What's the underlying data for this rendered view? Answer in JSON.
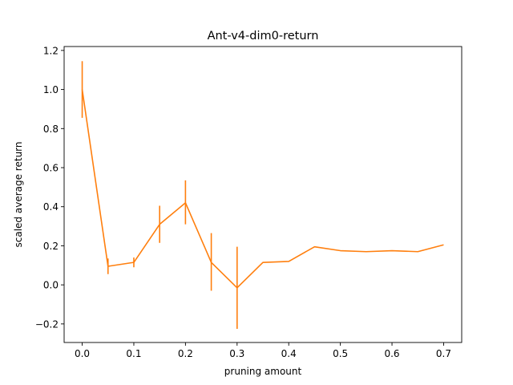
{
  "chart_data": {
    "type": "line",
    "title": "Ant-v4-dim0-return",
    "xlabel": "pruning amount",
    "ylabel": "scaled average return",
    "xlim": [
      -0.035,
      0.735
    ],
    "ylim": [
      -0.295,
      1.22
    ],
    "x_ticks": [
      0.0,
      0.1,
      0.2,
      0.3,
      0.4,
      0.5,
      0.6,
      0.7
    ],
    "x_tick_labels": [
      "0.0",
      "0.1",
      "0.2",
      "0.3",
      "0.4",
      "0.5",
      "0.6",
      "0.7"
    ],
    "y_ticks": [
      -0.2,
      0.0,
      0.2,
      0.4,
      0.6,
      0.8,
      1.0,
      1.2
    ],
    "y_tick_labels": [
      "−0.2",
      "0.0",
      "0.2",
      "0.4",
      "0.6",
      "0.8",
      "1.0",
      "1.2"
    ],
    "grid": false,
    "series": [
      {
        "color": "#ff7f0e",
        "x": [
          0.0,
          0.05,
          0.1,
          0.15,
          0.2,
          0.25,
          0.3,
          0.35,
          0.4,
          0.45,
          0.5,
          0.55,
          0.6,
          0.65,
          0.7
        ],
        "y": [
          1.0,
          0.095,
          0.115,
          0.31,
          0.42,
          0.115,
          -0.015,
          0.115,
          0.12,
          0.195,
          0.175,
          0.17,
          0.175,
          0.17,
          0.205
        ],
        "err_low": [
          0.855,
          0.055,
          0.09,
          0.215,
          0.31,
          -0.03,
          -0.225,
          0.115,
          0.12,
          0.195,
          0.175,
          0.17,
          0.175,
          0.17,
          0.205
        ],
        "err_high": [
          1.145,
          0.135,
          0.14,
          0.405,
          0.535,
          0.265,
          0.195,
          0.115,
          0.12,
          0.195,
          0.175,
          0.17,
          0.175,
          0.17,
          0.205
        ]
      }
    ]
  }
}
